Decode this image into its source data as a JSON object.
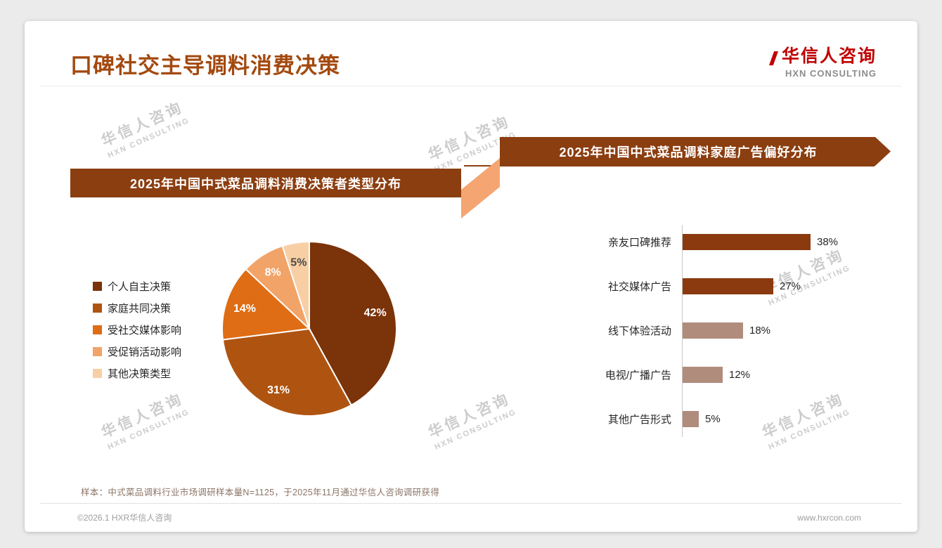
{
  "page": {
    "title": "口碑社交主导调料消费决策",
    "logo": {
      "cn": "华信人咨询",
      "en": "HXN CONSULTING"
    },
    "watermark": {
      "line1": "华信人咨询",
      "line2": "HXN CONSULTING"
    },
    "footnote": "样本：中式菜品调料行业市场调研样本量N=1125，于2025年11月通过华信人咨询调研获得",
    "footer": {
      "left": "©2026.1 HXR华信人咨询",
      "right": "www.hxrcon.com"
    }
  },
  "colors": {
    "title": "#A3490F",
    "banner": "#8B3E10",
    "connector": "#F4A571",
    "logo_red": "#C00000",
    "bar_dark": "#8B3A10",
    "bar_light": "#B08C7C"
  },
  "chart_data": [
    {
      "type": "pie",
      "title": "2025年中国中式菜品调料消费决策者类型分布",
      "categories": [
        "个人自主决策",
        "家庭共同决策",
        "受社交媒体影响",
        "受促销活动影响",
        "其他决策类型"
      ],
      "values": [
        42,
        31,
        14,
        8,
        5
      ],
      "unit": "%",
      "labels": [
        "42%",
        "31%",
        "14%",
        "8%",
        "5%"
      ],
      "colors": [
        "#7B3309",
        "#AF5410",
        "#DE6D15",
        "#F2A368",
        "#F8CFA5"
      ],
      "label_colors": [
        "#ffffff",
        "#ffffff",
        "#ffffff",
        "#ffffff",
        "#4a4a4a"
      ],
      "legend_position": "left"
    },
    {
      "type": "bar",
      "orientation": "horizontal",
      "title": "2025年中国中式菜品调料家庭广告偏好分布",
      "categories": [
        "亲友口碑推荐",
        "社交媒体广告",
        "线下体验活动",
        "电视/广播广告",
        "其他广告形式"
      ],
      "values": [
        38,
        27,
        18,
        12,
        5
      ],
      "unit": "%",
      "labels": [
        "38%",
        "27%",
        "18%",
        "12%",
        "5%"
      ],
      "colors": [
        "#8B3A10",
        "#8B3A10",
        "#B08C7C",
        "#B08C7C",
        "#B08C7C"
      ],
      "xlim": [
        0,
        40
      ],
      "grid": false
    }
  ]
}
